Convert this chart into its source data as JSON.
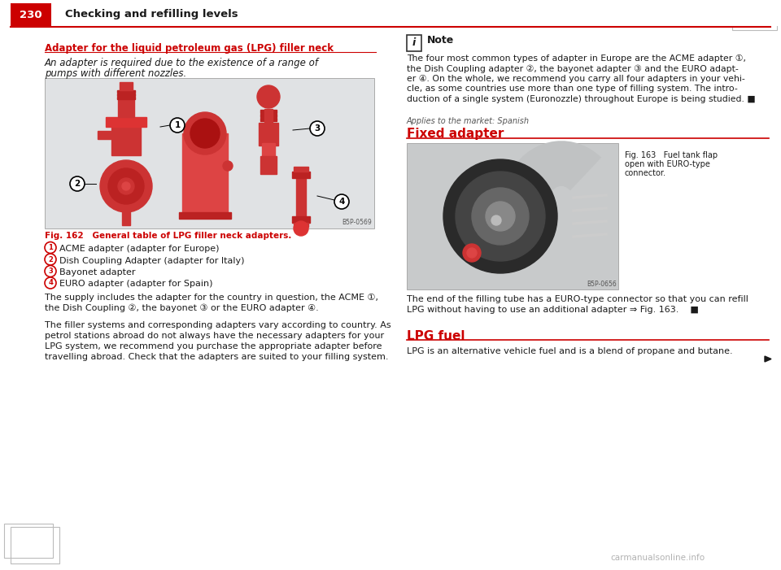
{
  "page_number": "230",
  "header_title": "Checking and refilling levels",
  "header_bg_color": "#cc0000",
  "header_text_color": "#ffffff",
  "header_title_color": "#1a1a1a",
  "red_line_color": "#cc0000",
  "background_color": "#ffffff",
  "left_section": {
    "heading": "Adapter for the liquid petroleum gas (LPG) filler neck",
    "heading_color": "#cc0000",
    "italic_line1": "An adapter is required due to the existence of a range of",
    "italic_line2": "pumps with different nozzles.",
    "fig_caption": "Fig. 162   General table of LPG filler neck adapters.",
    "fig_caption_color": "#cc0000",
    "fig_code": "B5P-0569",
    "items": [
      "ACME adapter (adapter for Europe)",
      "Dish Coupling Adapter (adapter for Italy)",
      "Bayonet adapter",
      "EURO adapter (adapter for Spain)"
    ],
    "body_text1_line1": "The supply includes the adapter for the country in question, the ACME ①,",
    "body_text1_line2": "the Dish Coupling ②, the bayonet ③ or the EURO adapter ④.",
    "body_text2_lines": [
      "The filler systems and corresponding adapters vary according to country. As",
      "petrol stations abroad do not always have the necessary adapters for your",
      "LPG system, we recommend you purchase the appropriate adapter before",
      "travelling abroad. Check that the adapters are suited to your filling system."
    ]
  },
  "right_section": {
    "note_title": "Note",
    "note_lines": [
      "The four most common types of adapter in Europe are the ACME adapter ①,",
      "the Dish Coupling adapter ②, the bayonet adapter ③ and the EURO adapt-",
      "er ④. On the whole, we recommend you carry all four adapters in your vehi-",
      "cle, as some countries use more than one type of filling system. The intro-",
      "duction of a single system (Euronozzle) throughout Europe is being studied. ■"
    ],
    "market_label": "Applies to the market: Spanish",
    "fixed_adapter_heading": "Fixed adapter",
    "fixed_adapter_color": "#cc0000",
    "fig163_caption_line1": "Fig. 163   Fuel tank flap",
    "fig163_caption_line2": "open with EURO-type",
    "fig163_caption_line3": "connector.",
    "fig163_code": "B5P-0656",
    "end_text_line1": "The end of the filling tube has a EURO-type connector so that you can refill",
    "end_text_line2": "LPG without having to use an additional adapter ⇒ Fig. 163.    ■",
    "lpg_heading": "LPG fuel",
    "lpg_heading_color": "#cc0000",
    "lpg_text": "LPG is an alternative vehicle fuel and is a blend of propane and butane."
  },
  "watermark": "carmanualsonline.info"
}
